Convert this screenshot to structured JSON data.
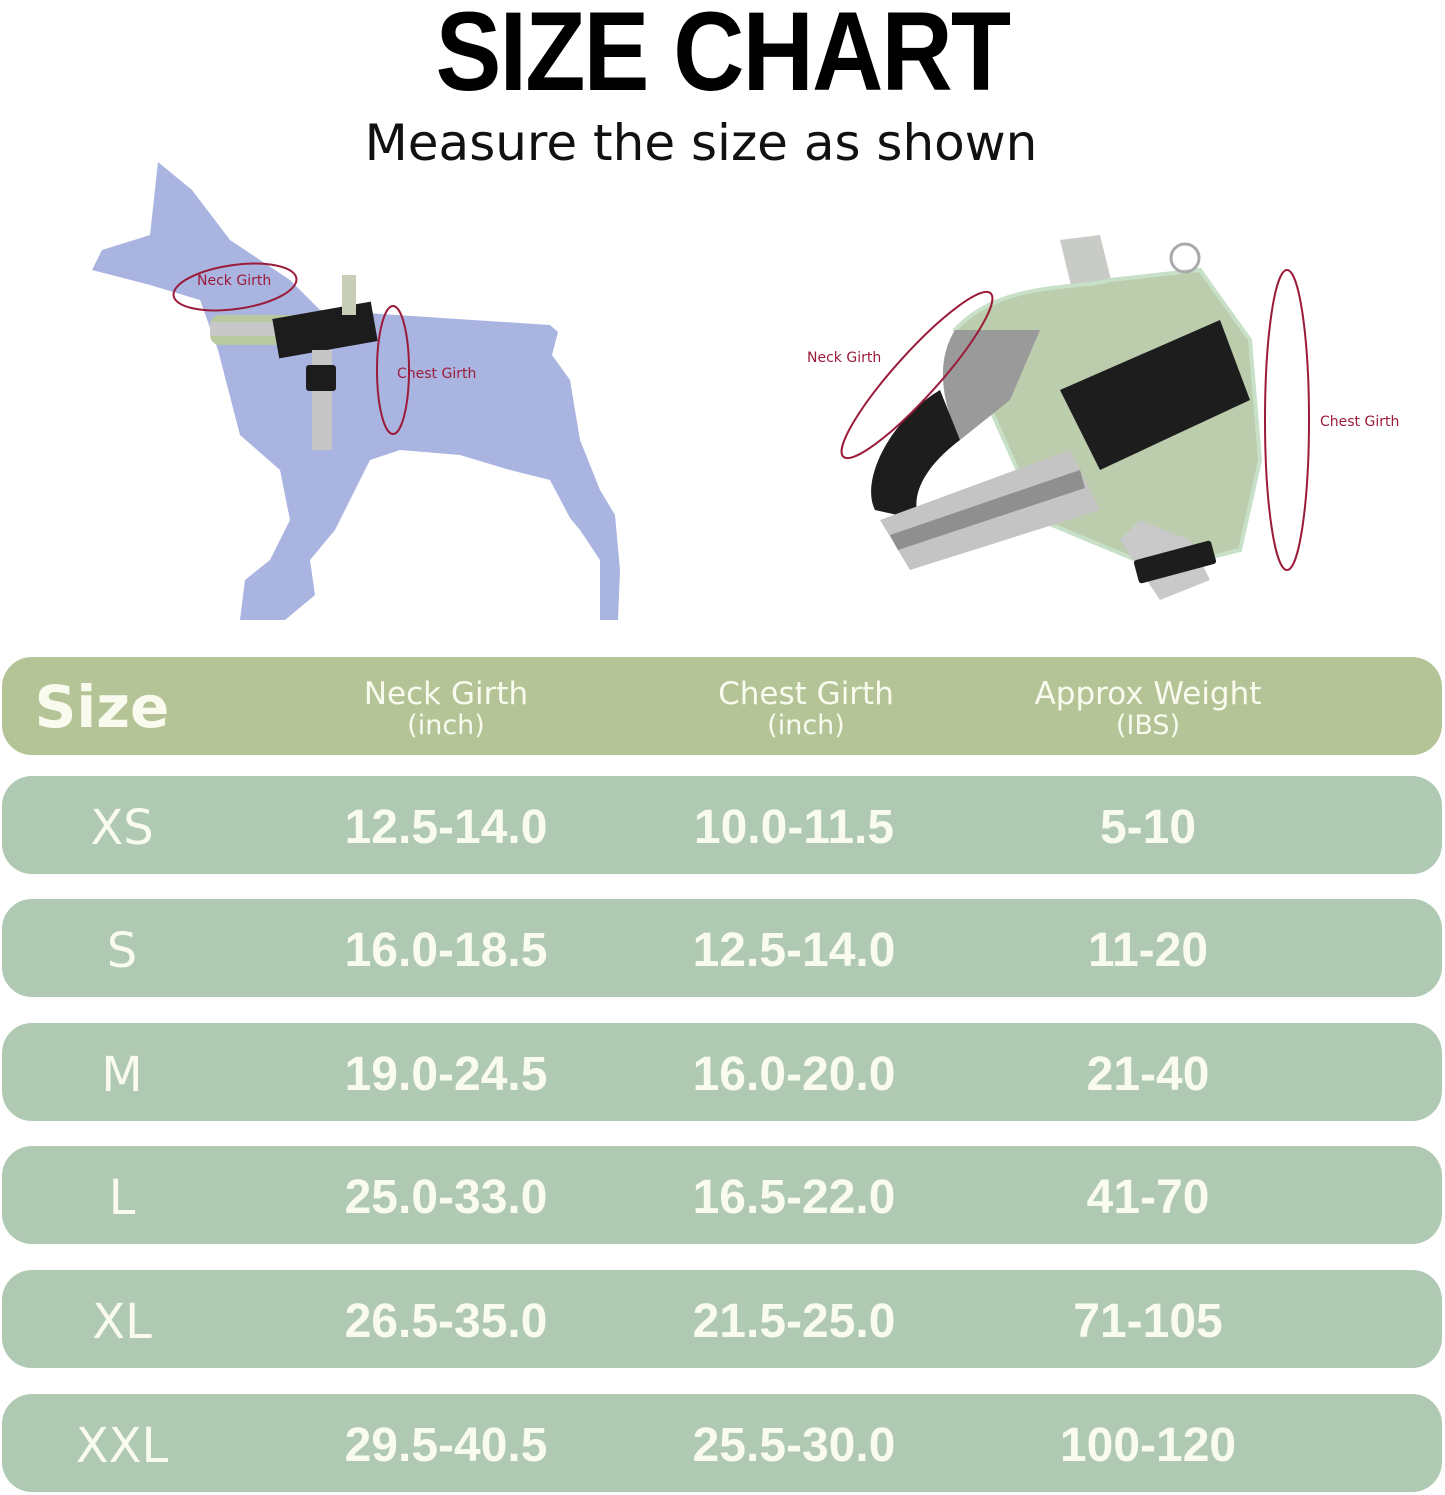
{
  "title": "SIZE CHART",
  "subtitle": "Measure the size as shown",
  "colors": {
    "header_bg": "#b4c496",
    "row_bg": "#b0c9b2",
    "text": "#f8fbee",
    "measure_line": "#9b1b3a",
    "dog": "#aab4e0"
  },
  "illustrations": {
    "dog": {
      "neck_label": "Neck Girth",
      "chest_label": "Chest Girth"
    },
    "harness": {
      "neck_label": "Neck Girth",
      "chest_label": "Chest Girth"
    }
  },
  "table": {
    "headers": [
      {
        "label": "Size",
        "unit": ""
      },
      {
        "label": "Neck Girth",
        "unit": "(inch)"
      },
      {
        "label": "Chest Girth",
        "unit": "(inch)"
      },
      {
        "label": "Approx Weight",
        "unit": "(IBS)"
      }
    ],
    "rows": [
      [
        "XS",
        "12.5-14.0",
        "10.0-11.5",
        "5-10"
      ],
      [
        "S",
        "16.0-18.5",
        "12.5-14.0",
        "11-20"
      ],
      [
        "M",
        "19.0-24.5",
        "16.0-20.0",
        "21-40"
      ],
      [
        "L",
        "25.0-33.0",
        "16.5-22.0",
        "41-70"
      ],
      [
        "XL",
        "26.5-35.0",
        "21.5-25.0",
        "71-105"
      ],
      [
        "XXL",
        "29.5-40.5",
        "25.5-30.0",
        "100-120"
      ]
    ]
  }
}
